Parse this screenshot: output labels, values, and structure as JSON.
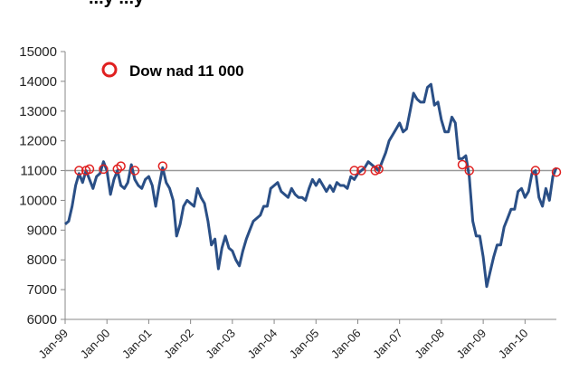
{
  "header_fragment": "...y ...y",
  "chart_data": {
    "type": "line",
    "title": "",
    "xlabel": "",
    "ylabel": "",
    "ylim": [
      6000,
      15000
    ],
    "yticks": [
      6000,
      7000,
      8000,
      9000,
      10000,
      11000,
      12000,
      13000,
      14000,
      15000
    ],
    "xlim": [
      "1999-01",
      "2010-10"
    ],
    "xtick_labels": [
      "Jan-99",
      "Jan-00",
      "Jan-01",
      "Jan-02",
      "Jan-03",
      "Jan-04",
      "Jan-05",
      "Jan-06",
      "Jan-07",
      "Jan-08",
      "Jan-09",
      "Jan-10"
    ],
    "grid": false,
    "legend_position": "top-left",
    "colors": {
      "series": "#2a4f86",
      "marker": "#e02020",
      "reference_line": "#9a9a9a",
      "axis": "#888888"
    },
    "reference_line": {
      "y": 11000
    },
    "series": [
      {
        "x": [
          "1999-01",
          "1999-02",
          "1999-03",
          "1999-04",
          "1999-05",
          "1999-06",
          "1999-07",
          "1999-08",
          "1999-09",
          "1999-10",
          "1999-11",
          "1999-12",
          "2000-01",
          "2000-02",
          "2000-03",
          "2000-04",
          "2000-05",
          "2000-06",
          "2000-07",
          "2000-08",
          "2000-09",
          "2000-10",
          "2000-11",
          "2000-12",
          "2001-01",
          "2001-02",
          "2001-03",
          "2001-04",
          "2001-05",
          "2001-06",
          "2001-07",
          "2001-08",
          "2001-09",
          "2001-10",
          "2001-11",
          "2001-12",
          "2002-01",
          "2002-02",
          "2002-03",
          "2002-04",
          "2002-05",
          "2002-06",
          "2002-07",
          "2002-08",
          "2002-09",
          "2002-10",
          "2002-11",
          "2002-12",
          "2003-01",
          "2003-02",
          "2003-03",
          "2003-04",
          "2003-05",
          "2003-06",
          "2003-07",
          "2003-08",
          "2003-09",
          "2003-10",
          "2003-11",
          "2003-12",
          "2004-01",
          "2004-02",
          "2004-03",
          "2004-04",
          "2004-05",
          "2004-06",
          "2004-07",
          "2004-08",
          "2004-09",
          "2004-10",
          "2004-11",
          "2004-12",
          "2005-01",
          "2005-02",
          "2005-03",
          "2005-04",
          "2005-05",
          "2005-06",
          "2005-07",
          "2005-08",
          "2005-09",
          "2005-10",
          "2005-11",
          "2005-12",
          "2006-01",
          "2006-02",
          "2006-03",
          "2006-04",
          "2006-05",
          "2006-06",
          "2006-07",
          "2006-08",
          "2006-09",
          "2006-10",
          "2006-11",
          "2006-12",
          "2007-01",
          "2007-02",
          "2007-03",
          "2007-04",
          "2007-05",
          "2007-06",
          "2007-07",
          "2007-08",
          "2007-09",
          "2007-10",
          "2007-11",
          "2007-12",
          "2008-01",
          "2008-02",
          "2008-03",
          "2008-04",
          "2008-05",
          "2008-06",
          "2008-07",
          "2008-08",
          "2008-09",
          "2008-10",
          "2008-11",
          "2008-12",
          "2009-01",
          "2009-02",
          "2009-03",
          "2009-04",
          "2009-05",
          "2009-06",
          "2009-07",
          "2009-08",
          "2009-09",
          "2009-10",
          "2009-11",
          "2009-12",
          "2010-01",
          "2010-02",
          "2010-03",
          "2010-04",
          "2010-05",
          "2010-06",
          "2010-07",
          "2010-08",
          "2010-09",
          "2010-10"
        ],
        "y": [
          9200,
          9300,
          9800,
          10500,
          10900,
          10600,
          11000,
          10700,
          10400,
          10800,
          10900,
          11300,
          11000,
          10200,
          10700,
          11000,
          10500,
          10400,
          10600,
          11200,
          10700,
          10500,
          10400,
          10700,
          10800,
          10500,
          9800,
          10500,
          11100,
          10600,
          10400,
          10000,
          8800,
          9200,
          9800,
          10000,
          9900,
          9800,
          10400,
          10100,
          9900,
          9300,
          8500,
          8700,
          7700,
          8400,
          8800,
          8400,
          8300,
          8000,
          7800,
          8300,
          8700,
          9000,
          9300,
          9400,
          9500,
          9800,
          9800,
          10400,
          10500,
          10600,
          10300,
          10200,
          10100,
          10400,
          10200,
          10100,
          10100,
          10000,
          10400,
          10700,
          10500,
          10700,
          10500,
          10300,
          10500,
          10300,
          10600,
          10500,
          10500,
          10400,
          10800,
          10700,
          10900,
          11000,
          11100,
          11300,
          11200,
          11100,
          11000,
          11300,
          11600,
          12000,
          12200,
          12400,
          12600,
          12300,
          12400,
          13000,
          13600,
          13400,
          13300,
          13300,
          13800,
          13900,
          13200,
          13300,
          12700,
          12300,
          12300,
          12800,
          12600,
          11400,
          11400,
          11500,
          10800,
          9300,
          8800,
          8800,
          8100,
          7100,
          7600,
          8100,
          8500,
          8500,
          9100,
          9400,
          9700,
          9700,
          10300,
          10400,
          10100,
          10300,
          10900,
          11000,
          10100,
          9800,
          10400,
          10000,
          10800,
          11100
        ]
      }
    ],
    "highlight_points": {
      "series_name": "Dow nad 11 000",
      "points": [
        {
          "x": "1999-05",
          "y": 11000
        },
        {
          "x": "1999-07",
          "y": 11000
        },
        {
          "x": "1999-08",
          "y": 11050
        },
        {
          "x": "1999-12",
          "y": 11050
        },
        {
          "x": "2000-04",
          "y": 11050
        },
        {
          "x": "2000-05",
          "y": 11150
        },
        {
          "x": "2000-09",
          "y": 11000
        },
        {
          "x": "2001-05",
          "y": 11150
        },
        {
          "x": "2005-12",
          "y": 11000
        },
        {
          "x": "2006-02",
          "y": 11000
        },
        {
          "x": "2006-06",
          "y": 11000
        },
        {
          "x": "2006-07",
          "y": 11050
        },
        {
          "x": "2008-07",
          "y": 11200
        },
        {
          "x": "2008-09",
          "y": 11000
        },
        {
          "x": "2010-04",
          "y": 11000
        },
        {
          "x": "2010-10",
          "y": 10950
        }
      ]
    }
  }
}
